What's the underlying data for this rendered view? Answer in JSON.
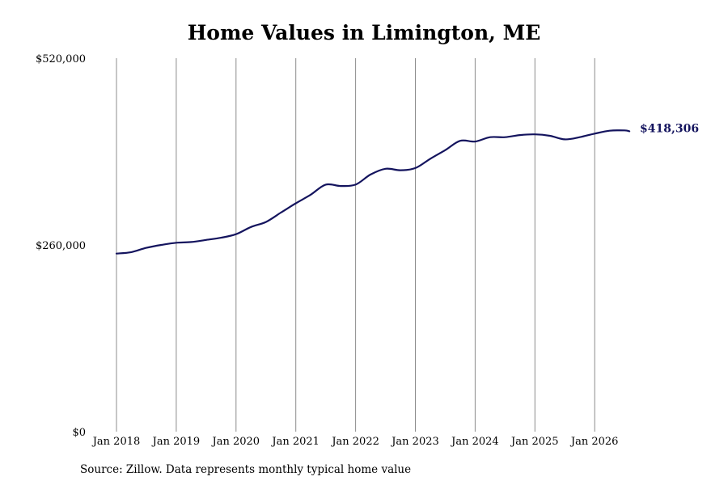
{
  "chart_data": {
    "type": "line",
    "title": "Home Values in Limington, ME",
    "xlabel": "",
    "ylabel": "",
    "ylim": [
      0,
      520000
    ],
    "y_ticks": [
      "$0",
      "$260,000",
      "$520,000"
    ],
    "y_tick_values": [
      0,
      260000,
      520000
    ],
    "x_ticks": [
      "Jan 2018",
      "Jan 2019",
      "Jan 2020",
      "Jan 2021",
      "Jan 2022",
      "Jan 2023",
      "Jan 2024",
      "Jan 2025",
      "Jan 2026"
    ],
    "x_tick_values": [
      2018,
      2019,
      2020,
      2021,
      2022,
      2023,
      2024,
      2025,
      2026
    ],
    "grid": "vertical",
    "line_color": "#14145e",
    "end_label": "$418,306",
    "series": [
      {
        "x": [
          2018.0,
          2018.25,
          2018.5,
          2018.75,
          2019.0,
          2019.25,
          2019.5,
          2019.75,
          2020.0,
          2020.25,
          2020.5,
          2020.75,
          2021.0,
          2021.25,
          2021.5,
          2021.75,
          2022.0,
          2022.25,
          2022.5,
          2022.75,
          2023.0,
          2023.25,
          2023.5,
          2023.75,
          2024.0,
          2024.25,
          2024.5,
          2024.75,
          2025.0,
          2025.25,
          2025.5,
          2025.75,
          2026.0,
          2026.25,
          2026.5,
          2026.58
        ],
        "values": [
          248000,
          250000,
          256000,
          260000,
          263000,
          264000,
          267000,
          270000,
          275000,
          285000,
          292000,
          305000,
          318000,
          330000,
          344000,
          342000,
          344000,
          358000,
          366000,
          364000,
          367000,
          380000,
          392000,
          405000,
          404000,
          410000,
          410000,
          413000,
          414000,
          412000,
          407000,
          410000,
          415000,
          419000,
          419500,
          418306
        ]
      }
    ]
  },
  "source": "Source: Zillow. Data represents monthly typical home value"
}
